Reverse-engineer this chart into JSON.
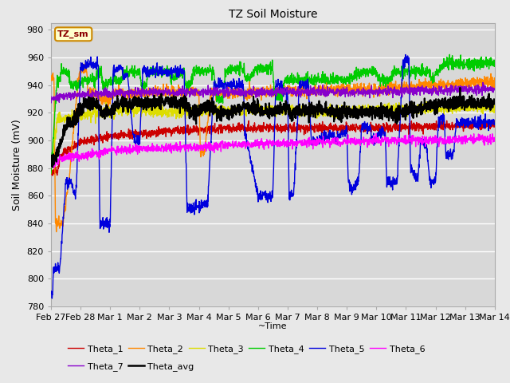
{
  "title": "TZ Soil Moisture",
  "ylabel": "Soil Moisture (mV)",
  "xlabel": "~Time",
  "plot_label": "TZ_sm",
  "ylim": [
    780,
    985
  ],
  "xlim": [
    0,
    15
  ],
  "background_color": "#e8e8e8",
  "plot_bg_color": "#d8d8d8",
  "grid_color": "#ffffff",
  "series_colors": {
    "Theta_1": "#cc0000",
    "Theta_2": "#ff8800",
    "Theta_3": "#dddd00",
    "Theta_4": "#00cc00",
    "Theta_5": "#0000dd",
    "Theta_6": "#ff00ff",
    "Theta_7": "#8800cc",
    "Theta_avg": "#000000"
  },
  "x_tick_labels": [
    "Feb 27",
    "Feb 28",
    "Mar 1",
    "Mar 2",
    "Mar 3",
    "Mar 4",
    "Mar 5",
    "Mar 6",
    "Mar 7",
    "Mar 8",
    "Mar 9",
    "Mar 10",
    "Mar 11",
    "Mar 12",
    "Mar 13",
    "Mar 14"
  ],
  "y_ticks": [
    780,
    800,
    820,
    840,
    860,
    880,
    900,
    920,
    940,
    960,
    980
  ],
  "legend_row1": [
    "Theta_1",
    "Theta_2",
    "Theta_3",
    "Theta_4",
    "Theta_5",
    "Theta_6"
  ],
  "legend_row2": [
    "Theta_7",
    "Theta_avg"
  ],
  "num_points": 2000,
  "seed": 42,
  "figsize": [
    6.4,
    4.8
  ],
  "dpi": 100
}
